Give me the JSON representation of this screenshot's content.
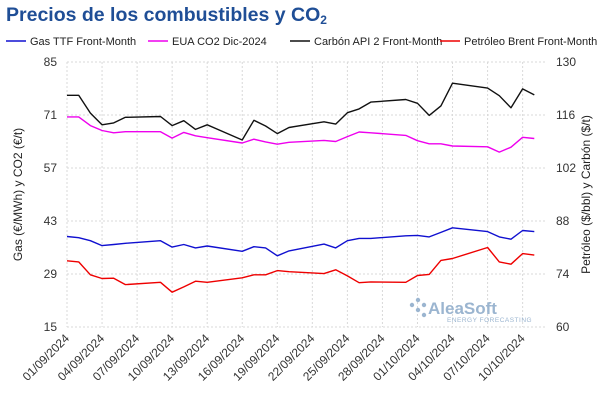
{
  "header": {
    "title_text": "Precios de los combustibles y CO",
    "title_subscript": "2"
  },
  "watermark": {
    "brand": "AleaSoft",
    "tagline": "ENERGY FORECASTING",
    "color": "#9bb5d0"
  },
  "chart_data": {
    "type": "line",
    "title": "Precios de los combustibles y CO2",
    "ylabel_left": "Gas (€/MWh) y CO2 (€/t)",
    "ylabel_right": "Petróleo ($/bbl) y Carbón ($/t)",
    "yticks_left": [
      15,
      29,
      43,
      57,
      71,
      85
    ],
    "yticks_right": [
      60,
      74,
      88,
      102,
      116,
      130
    ],
    "ylim_left": [
      15,
      85
    ],
    "ylim_right": [
      60,
      130
    ],
    "xlim": [
      "2024-09-01",
      "2024-10-12"
    ],
    "xtick_labels": [
      "01/09/2024",
      "04/09/2024",
      "07/09/2024",
      "10/09/2024",
      "13/09/2024",
      "16/09/2024",
      "19/09/2024",
      "22/09/2024",
      "25/09/2024",
      "28/09/2024",
      "01/10/2024",
      "04/10/2024",
      "07/10/2024",
      "10/10/2024"
    ],
    "grid": true,
    "legend_position": "top",
    "series": [
      {
        "name": "Gas TTF Front-Month",
        "axis": "left",
        "color": "#1010d0",
        "points": [
          [
            "2024-09-01",
            38.9
          ],
          [
            "2024-09-02",
            38.6
          ],
          [
            "2024-09-03",
            37.8
          ],
          [
            "2024-09-04",
            36.5
          ],
          [
            "2024-09-05",
            36.8
          ],
          [
            "2024-09-06",
            37.1
          ],
          [
            "2024-09-09",
            37.8
          ],
          [
            "2024-09-10",
            36.1
          ],
          [
            "2024-09-11",
            36.8
          ],
          [
            "2024-09-12",
            35.9
          ],
          [
            "2024-09-13",
            36.4
          ],
          [
            "2024-09-16",
            35.0
          ],
          [
            "2024-09-17",
            36.2
          ],
          [
            "2024-09-18",
            35.9
          ],
          [
            "2024-09-19",
            33.8
          ],
          [
            "2024-09-20",
            35.1
          ],
          [
            "2024-09-23",
            36.9
          ],
          [
            "2024-09-24",
            35.9
          ],
          [
            "2024-09-25",
            37.8
          ],
          [
            "2024-09-26",
            38.4
          ],
          [
            "2024-09-27",
            38.4
          ],
          [
            "2024-09-30",
            39.1
          ],
          [
            "2024-10-01",
            39.2
          ],
          [
            "2024-10-02",
            38.8
          ],
          [
            "2024-10-03",
            40.0
          ],
          [
            "2024-10-04",
            41.2
          ],
          [
            "2024-10-07",
            40.2
          ],
          [
            "2024-10-08",
            38.8
          ],
          [
            "2024-10-09",
            38.2
          ],
          [
            "2024-10-10",
            40.5
          ],
          [
            "2024-10-11",
            40.2
          ]
        ]
      },
      {
        "name": "EUA CO2 Dic-2024",
        "axis": "left",
        "color": "#ee00ee",
        "points": [
          [
            "2024-09-01",
            70.5
          ],
          [
            "2024-09-02",
            70.5
          ],
          [
            "2024-09-03",
            68.2
          ],
          [
            "2024-09-04",
            66.9
          ],
          [
            "2024-09-05",
            66.3
          ],
          [
            "2024-09-06",
            66.6
          ],
          [
            "2024-09-09",
            66.6
          ],
          [
            "2024-09-10",
            64.9
          ],
          [
            "2024-09-11",
            66.4
          ],
          [
            "2024-09-12",
            65.5
          ],
          [
            "2024-09-13",
            65.0
          ],
          [
            "2024-09-16",
            63.6
          ],
          [
            "2024-09-17",
            64.6
          ],
          [
            "2024-09-18",
            63.9
          ],
          [
            "2024-09-19",
            63.3
          ],
          [
            "2024-09-20",
            63.8
          ],
          [
            "2024-09-23",
            64.3
          ],
          [
            "2024-09-24",
            64.0
          ],
          [
            "2024-09-25",
            65.3
          ],
          [
            "2024-09-26",
            66.5
          ],
          [
            "2024-09-27",
            66.3
          ],
          [
            "2024-09-30",
            65.6
          ],
          [
            "2024-10-01",
            64.2
          ],
          [
            "2024-10-02",
            63.4
          ],
          [
            "2024-10-03",
            63.4
          ],
          [
            "2024-10-04",
            62.8
          ],
          [
            "2024-10-07",
            62.6
          ],
          [
            "2024-10-08",
            61.2
          ],
          [
            "2024-10-09",
            62.5
          ],
          [
            "2024-10-10",
            65.1
          ],
          [
            "2024-10-11",
            64.8
          ]
        ]
      },
      {
        "name": "Carbón API 2 Front-Month",
        "axis": "right",
        "color": "#111111",
        "points": [
          [
            "2024-09-01",
            121.2
          ],
          [
            "2024-09-02",
            121.2
          ],
          [
            "2024-09-03",
            116.5
          ],
          [
            "2024-09-04",
            113.4
          ],
          [
            "2024-09-05",
            113.9
          ],
          [
            "2024-09-06",
            115.4
          ],
          [
            "2024-09-09",
            115.6
          ],
          [
            "2024-09-10",
            113.2
          ],
          [
            "2024-09-11",
            114.5
          ],
          [
            "2024-09-12",
            112.2
          ],
          [
            "2024-09-13",
            113.4
          ],
          [
            "2024-09-16",
            109.4
          ],
          [
            "2024-09-17",
            114.6
          ],
          [
            "2024-09-18",
            113.1
          ],
          [
            "2024-09-19",
            111.1
          ],
          [
            "2024-09-20",
            112.7
          ],
          [
            "2024-09-23",
            114.2
          ],
          [
            "2024-09-24",
            113.6
          ],
          [
            "2024-09-25",
            116.6
          ],
          [
            "2024-09-26",
            117.6
          ],
          [
            "2024-09-27",
            119.4
          ],
          [
            "2024-09-30",
            120.1
          ],
          [
            "2024-10-01",
            119.1
          ],
          [
            "2024-10-02",
            115.9
          ],
          [
            "2024-10-03",
            118.4
          ],
          [
            "2024-10-04",
            124.4
          ],
          [
            "2024-10-07",
            123.1
          ],
          [
            "2024-10-08",
            121.1
          ],
          [
            "2024-10-09",
            117.9
          ],
          [
            "2024-10-10",
            122.9
          ],
          [
            "2024-10-11",
            121.3
          ]
        ]
      },
      {
        "name": "Petróleo Brent Front-Month",
        "axis": "right",
        "color": "#ee0000",
        "points": [
          [
            "2024-09-01",
            77.5
          ],
          [
            "2024-09-02",
            77.2
          ],
          [
            "2024-09-03",
            73.8
          ],
          [
            "2024-09-04",
            72.8
          ],
          [
            "2024-09-05",
            72.9
          ],
          [
            "2024-09-06",
            71.2
          ],
          [
            "2024-09-09",
            71.8
          ],
          [
            "2024-09-10",
            69.2
          ],
          [
            "2024-09-11",
            70.6
          ],
          [
            "2024-09-12",
            72.1
          ],
          [
            "2024-09-13",
            71.8
          ],
          [
            "2024-09-16",
            73.0
          ],
          [
            "2024-09-17",
            73.8
          ],
          [
            "2024-09-18",
            73.8
          ],
          [
            "2024-09-19",
            74.9
          ],
          [
            "2024-09-20",
            74.6
          ],
          [
            "2024-09-23",
            74.1
          ],
          [
            "2024-09-24",
            75.1
          ],
          [
            "2024-09-25",
            73.5
          ],
          [
            "2024-09-26",
            71.7
          ],
          [
            "2024-09-27",
            71.9
          ],
          [
            "2024-09-30",
            71.8
          ],
          [
            "2024-10-01",
            73.6
          ],
          [
            "2024-10-02",
            73.9
          ],
          [
            "2024-10-03",
            77.6
          ],
          [
            "2024-10-04",
            78.1
          ],
          [
            "2024-10-07",
            81.0
          ],
          [
            "2024-10-08",
            77.2
          ],
          [
            "2024-10-09",
            76.6
          ],
          [
            "2024-10-10",
            79.4
          ],
          [
            "2024-10-11",
            79.0
          ]
        ]
      }
    ]
  }
}
